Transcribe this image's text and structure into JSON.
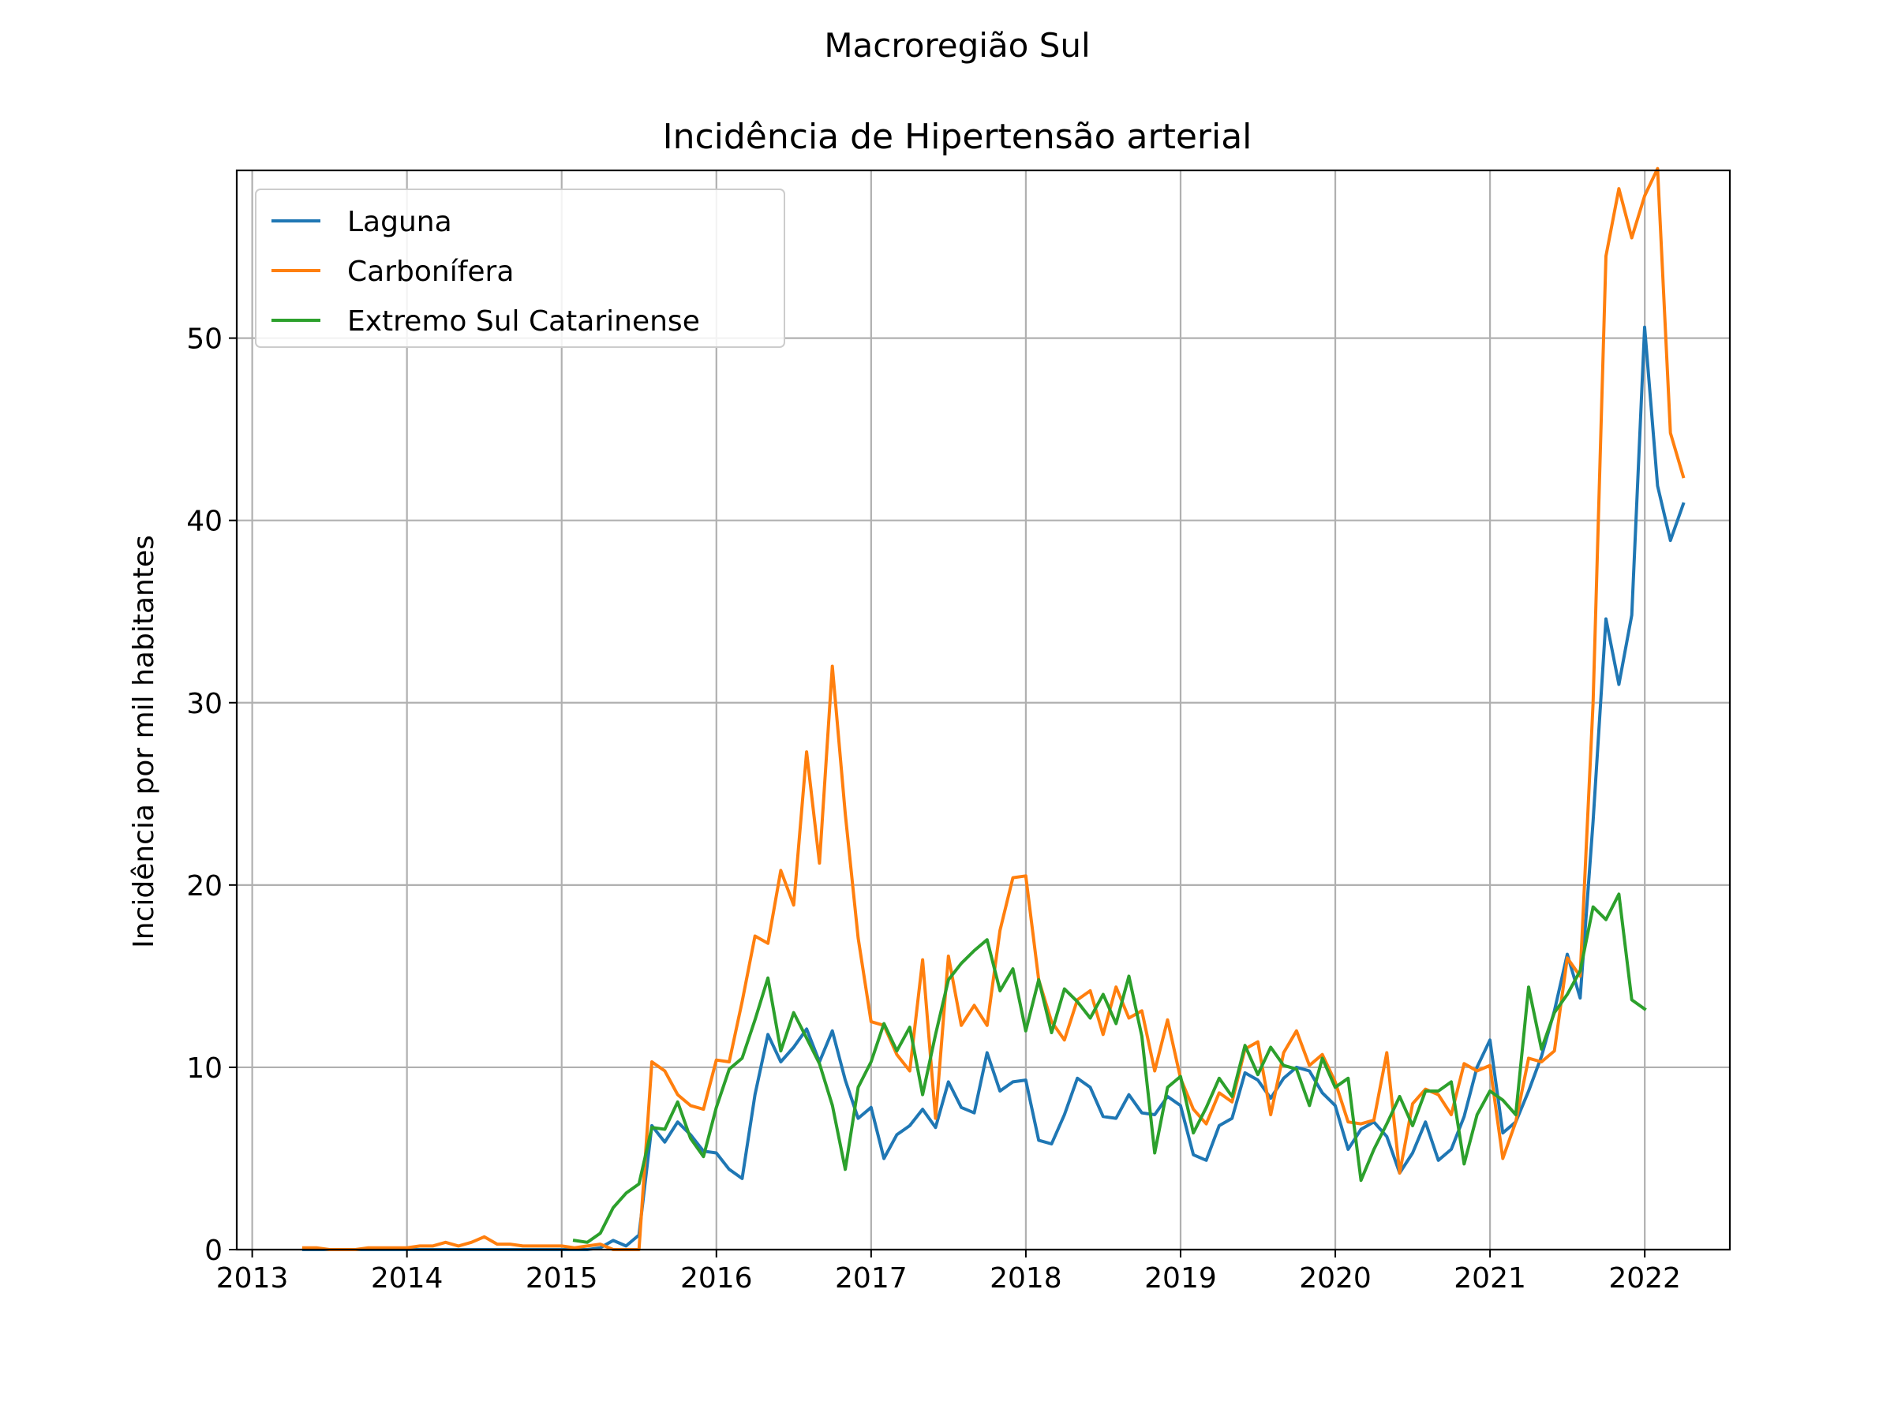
{
  "chart_data": {
    "type": "line",
    "suptitle": "Macroregião Sul",
    "title": "Incidência de Hipertensão arterial",
    "xlabel": "",
    "ylabel": "Incidência por mil habitantes",
    "xlim": [
      2012.9,
      2022.55
    ],
    "ylim": [
      0,
      59.2
    ],
    "xticks": [
      2013,
      2014,
      2015,
      2016,
      2017,
      2018,
      2019,
      2020,
      2021,
      2022
    ],
    "xtick_labels": [
      "2013",
      "2014",
      "2015",
      "2016",
      "2017",
      "2018",
      "2019",
      "2020",
      "2021",
      "2022"
    ],
    "yticks": [
      0,
      10,
      20,
      30,
      40,
      50
    ],
    "ytick_labels": [
      "0",
      "10",
      "20",
      "30",
      "40",
      "50"
    ],
    "grid": true,
    "legend": "upper-left",
    "series": [
      {
        "name": "Laguna",
        "color": "#1f77b4",
        "x_start": 2013.333,
        "step": 0.08333,
        "values": [
          0,
          0,
          0,
          0,
          0,
          0,
          0,
          0,
          0,
          0,
          0,
          0,
          0,
          0,
          0,
          0,
          0,
          0,
          0,
          0,
          0,
          0,
          0,
          0.1,
          0.5,
          0.2,
          0.8,
          6.8,
          5.9,
          7.0,
          6.3,
          5.4,
          5.3,
          4.4,
          3.9,
          8.5,
          11.8,
          10.3,
          11.1,
          12.1,
          10.3,
          12.0,
          9.3,
          7.2,
          7.8,
          5.0,
          6.3,
          6.8,
          7.7,
          6.7,
          9.2,
          7.8,
          7.5,
          10.8,
          8.7,
          9.2,
          9.3,
          6.0,
          5.8,
          7.4,
          9.4,
          8.9,
          7.3,
          7.2,
          8.5,
          7.5,
          7.4,
          8.4,
          7.9,
          5.2,
          4.9,
          6.8,
          7.2,
          9.7,
          9.3,
          8.3,
          9.4,
          10.0,
          9.8,
          8.6,
          7.9,
          5.5,
          6.6,
          7.0,
          6.2,
          4.2,
          5.3,
          7.0,
          4.9,
          5.5,
          7.3,
          10.0,
          11.5,
          6.4,
          7.0,
          8.7,
          10.6,
          13.1,
          16.2,
          13.8,
          23.5,
          34.6,
          31.0,
          34.8,
          50.6,
          41.9,
          38.9,
          40.9
        ]
      },
      {
        "name": "Carbonífera",
        "color": "#ff7f0e",
        "x_start": 2013.333,
        "step": 0.08333,
        "values": [
          0.1,
          0.1,
          0,
          0,
          0,
          0.1,
          0.1,
          0.1,
          0.1,
          0.2,
          0.2,
          0.4,
          0.2,
          0.4,
          0.7,
          0.3,
          0.3,
          0.2,
          0.2,
          0.2,
          0.2,
          0.1,
          0.2,
          0.3,
          0,
          0,
          0,
          10.3,
          9.8,
          8.5,
          7.9,
          7.7,
          10.4,
          10.3,
          13.6,
          17.2,
          16.8,
          20.8,
          18.9,
          27.3,
          21.2,
          32.0,
          23.9,
          17.1,
          12.5,
          12.3,
          10.7,
          9.8,
          15.9,
          7.2,
          16.1,
          12.3,
          13.4,
          12.3,
          17.5,
          20.4,
          20.5,
          14.8,
          12.5,
          11.5,
          13.7,
          14.2,
          11.8,
          14.4,
          12.7,
          13.1,
          9.8,
          12.6,
          9.4,
          7.7,
          6.9,
          8.6,
          8.1,
          11.0,
          11.4,
          7.4,
          10.8,
          12.0,
          10.1,
          10.7,
          9.2,
          7.0,
          6.9,
          7.1,
          10.8,
          4.2,
          8.0,
          8.8,
          8.5,
          7.4,
          10.2,
          9.8,
          10.1,
          5.0,
          7.0,
          10.5,
          10.3,
          10.9,
          16.0,
          15.0,
          30.0,
          54.5,
          58.2,
          55.5,
          57.8,
          59.3,
          44.8,
          42.4
        ]
      },
      {
        "name": "Extremo Sul Catarinense",
        "color": "#2ca02c",
        "x_start": 2015.083,
        "step": 0.08333,
        "values": [
          0.5,
          0.4,
          0.9,
          2.3,
          3.1,
          3.6,
          6.7,
          6.6,
          8.1,
          6.1,
          5.1,
          7.8,
          9.9,
          10.5,
          12.6,
          14.9,
          10.9,
          13.0,
          11.6,
          10.2,
          7.9,
          4.4,
          8.9,
          10.3,
          12.4,
          10.9,
          12.2,
          8.5,
          11.8,
          14.8,
          15.7,
          16.4,
          17.0,
          14.2,
          15.4,
          12.0,
          14.8,
          11.9,
          14.3,
          13.6,
          12.7,
          14.0,
          12.4,
          15.0,
          11.7,
          5.3,
          8.9,
          9.5,
          6.4,
          7.8,
          9.4,
          8.4,
          11.2,
          9.6,
          11.1,
          10.1,
          9.9,
          7.9,
          10.5,
          8.9,
          9.4,
          3.8,
          5.5,
          6.9,
          8.4,
          6.8,
          8.7,
          8.7,
          9.2,
          4.7,
          7.4,
          8.7,
          8.2,
          7.4,
          14.4,
          11.0,
          13.0,
          14.0,
          15.3,
          18.8,
          18.1,
          19.5,
          13.7,
          13.2
        ]
      }
    ]
  }
}
